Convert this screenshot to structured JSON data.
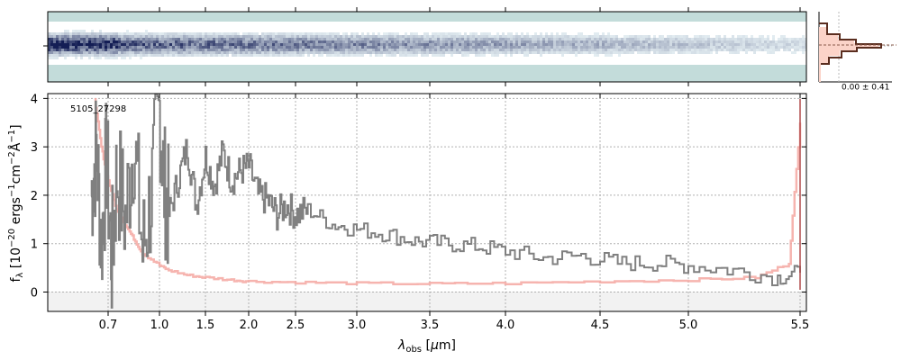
{
  "chart_data": {
    "type": "line",
    "object_id": "5105_27298",
    "xlabel": "λ_obs [μm]",
    "ylabel": "f_λ [10^-20 ergs^-1 cm^-2 Å^-1]",
    "x_ticks": [
      "0.7",
      "1.0",
      "1.5",
      "2.0",
      "2.5",
      "3.0",
      "3.5",
      "4.0",
      "4.5",
      "5.0",
      "5.5"
    ],
    "y_ticks": [
      "0",
      "1",
      "2",
      "3",
      "4"
    ],
    "ylim": [
      -0.4,
      4.1
    ],
    "grid": true,
    "x_scale": "nonlinear (prism dispersion)",
    "histogram_label": "0.00 ± 0.41",
    "series": [
      {
        "role": "flux",
        "color": "#808080",
        "x": [
          0.6,
          0.63,
          0.66,
          0.69,
          0.72,
          0.75,
          0.8,
          0.85,
          0.9,
          0.95,
          1.0,
          1.05,
          1.1,
          1.2,
          1.3,
          1.4,
          1.5,
          1.6,
          1.7,
          1.8,
          1.9,
          2.0,
          2.1,
          2.2,
          2.3,
          2.4,
          2.5,
          2.6,
          2.8,
          3.0,
          3.2,
          3.4,
          3.6,
          3.8,
          4.0,
          4.2,
          4.4,
          4.6,
          4.8,
          5.0,
          5.2,
          5.4,
          5.5
        ],
        "y": [
          2.0,
          3.0,
          1.0,
          2.8,
          0.6,
          2.5,
          1.5,
          3.2,
          0.8,
          2.0,
          3.8,
          2.2,
          1.6,
          2.3,
          3.0,
          1.8,
          2.8,
          2.2,
          2.9,
          2.3,
          2.5,
          2.6,
          2.0,
          1.9,
          1.6,
          1.8,
          1.6,
          1.7,
          1.4,
          1.3,
          1.2,
          1.05,
          1.0,
          0.95,
          0.85,
          0.7,
          0.75,
          0.6,
          0.6,
          0.55,
          0.45,
          0.3,
          0.4
        ]
      },
      {
        "role": "uncertainty",
        "color": "#f4a7a1",
        "x": [
          0.62,
          0.66,
          0.7,
          0.75,
          0.8,
          0.85,
          0.9,
          1.0,
          1.1,
          1.3,
          1.5,
          1.8,
          2.0,
          2.5,
          3.0,
          3.5,
          4.0,
          4.5,
          5.0,
          5.3,
          5.45,
          5.5
        ],
        "y": [
          4.0,
          3.0,
          2.3,
          1.7,
          1.4,
          1.1,
          0.8,
          0.55,
          0.45,
          0.35,
          0.3,
          0.25,
          0.22,
          0.2,
          0.18,
          0.17,
          0.18,
          0.22,
          0.25,
          0.3,
          0.6,
          3.5
        ]
      }
    ]
  }
}
